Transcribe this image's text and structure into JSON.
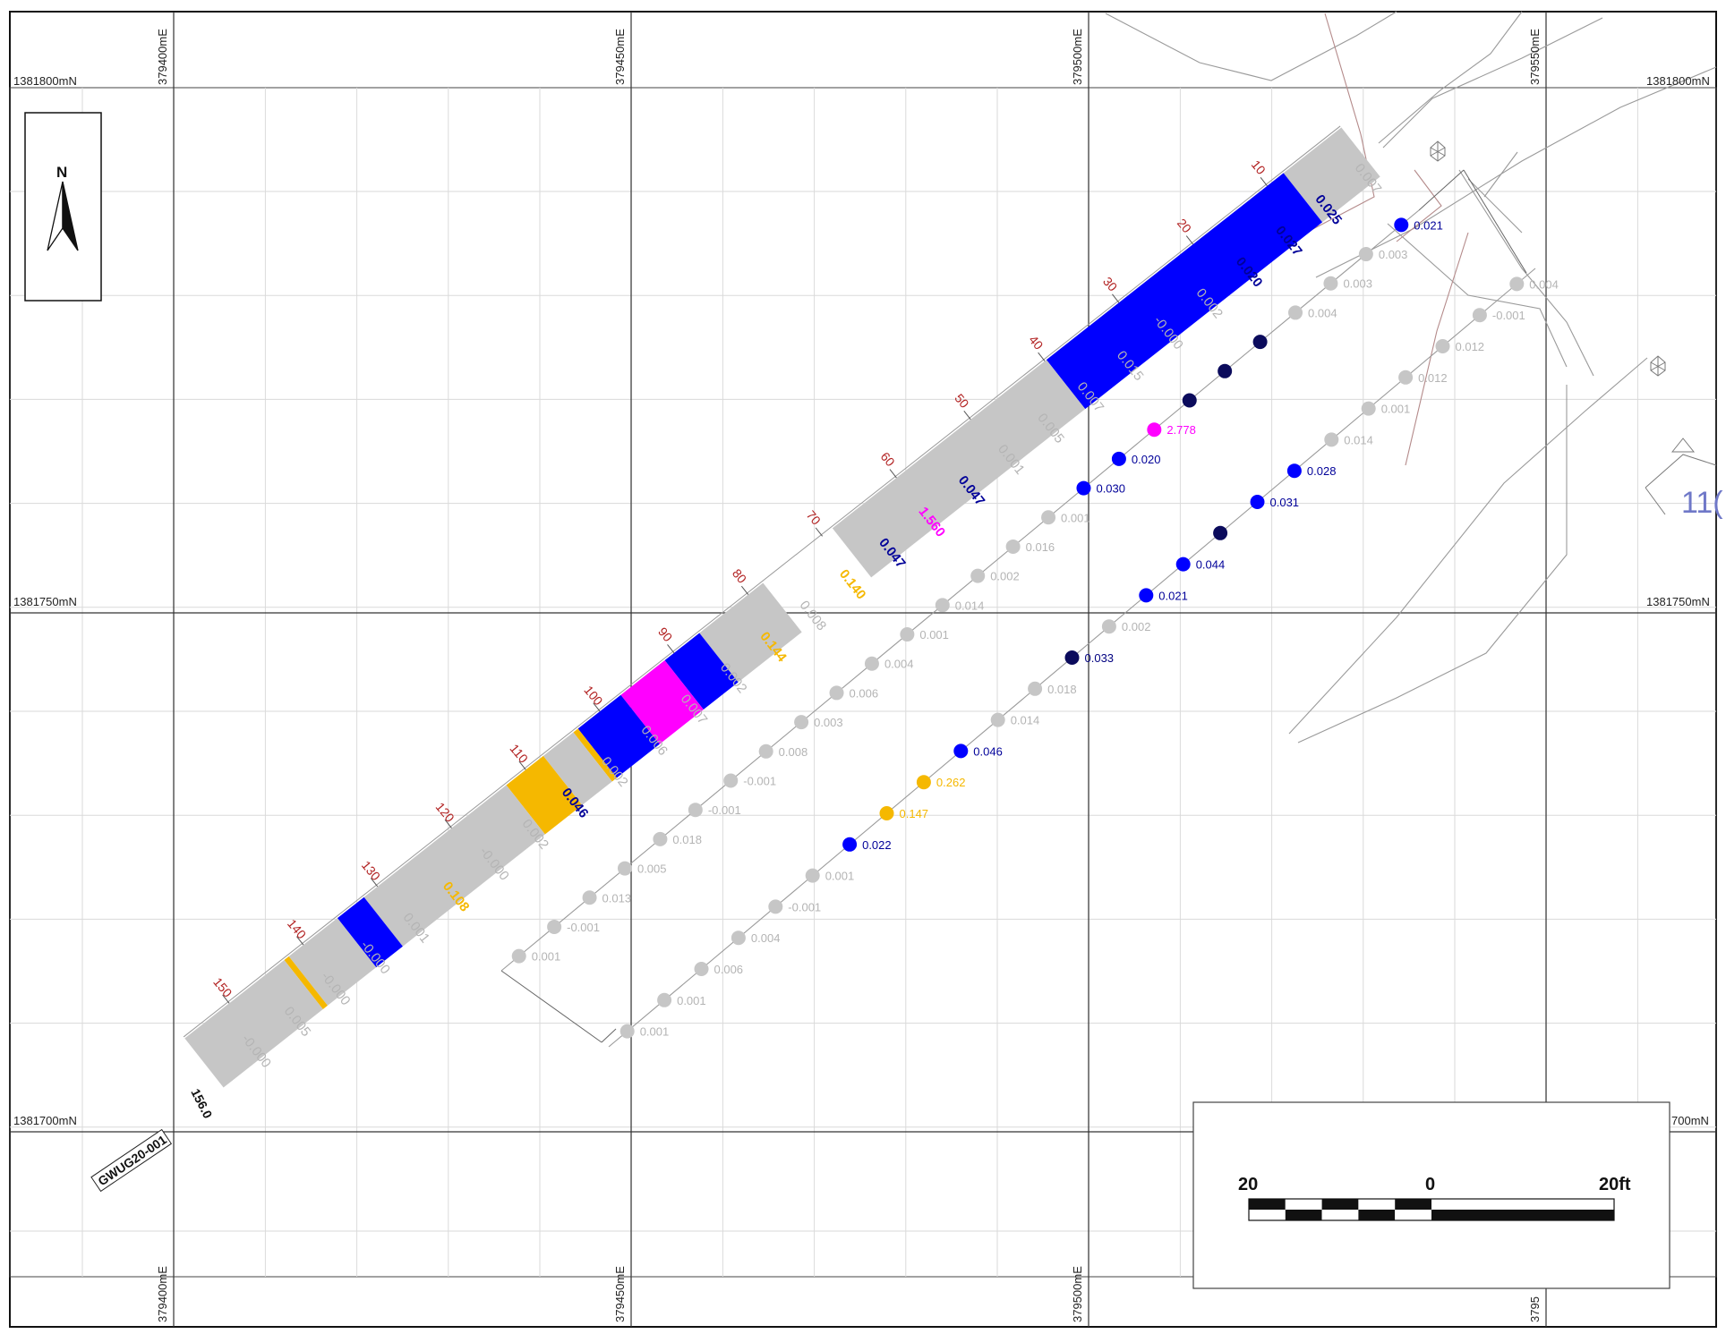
{
  "map": {
    "north_label": "N",
    "easting_labels": [
      "379400mE",
      "379450mE",
      "379500mE",
      "379550mE"
    ],
    "easting_labels_bottom": [
      "379400mE",
      "379450mE",
      "379500mE",
      "3795"
    ],
    "northing_labels": [
      "1381800mN",
      "1381750mN",
      "1381700mN"
    ],
    "northing_right_cropped": "700mN",
    "hole_id": "GWUG20-001",
    "hole_end_depth": "156.0",
    "scale_bar": {
      "left": "20",
      "mid": "0",
      "right": "20ft"
    },
    "partial_label": "11(",
    "colors": {
      "grey": "#c6c6c6",
      "low_grey_text": "#b4b4b4",
      "blue": "#0000ff",
      "dark_navy": "#0b0b5c",
      "magenta": "#ff00ff",
      "orange": "#f5b800",
      "depth_red": "#b22222",
      "contour": "#b08a8a"
    }
  },
  "depth_ticks": [
    "10",
    "20",
    "30",
    "40",
    "50",
    "60",
    "70",
    "80",
    "90",
    "100",
    "110",
    "120",
    "130",
    "140",
    "150"
  ],
  "hole_assays": [
    {
      "v": "0.007",
      "c": "grey"
    },
    {
      "v": "0.025",
      "c": "blue"
    },
    {
      "v": "0.027",
      "c": "blue"
    },
    {
      "v": "0.020",
      "c": "blue"
    },
    {
      "v": "0.002",
      "c": "grey"
    },
    {
      "v": "-0.000",
      "c": "grey"
    },
    {
      "v": "0.015",
      "c": "grey"
    },
    {
      "v": "0.007",
      "c": "grey"
    },
    {
      "v": "0.005",
      "c": "grey"
    },
    {
      "v": "0.001",
      "c": "grey"
    },
    {
      "v": "0.047",
      "c": "blue"
    },
    {
      "v": "1.560",
      "c": "magenta"
    },
    {
      "v": "0.047",
      "c": "blue"
    },
    {
      "v": "0.140",
      "c": "orange"
    },
    {
      "v": "0.008",
      "c": "grey"
    },
    {
      "v": "0.144",
      "c": "orange"
    },
    {
      "v": "0.002",
      "c": "grey"
    },
    {
      "v": "0.007",
      "c": "grey"
    },
    {
      "v": "0.006",
      "c": "grey"
    },
    {
      "v": "0.002",
      "c": "grey"
    },
    {
      "v": "0.046",
      "c": "blue"
    },
    {
      "v": "0.002",
      "c": "grey"
    },
    {
      "v": "-0.000",
      "c": "grey"
    },
    {
      "v": "0.108",
      "c": "orange"
    },
    {
      "v": "0.001",
      "c": "grey"
    },
    {
      "v": "-0.000",
      "c": "grey"
    },
    {
      "v": "-0.000",
      "c": "grey"
    },
    {
      "v": "0.005",
      "c": "grey"
    },
    {
      "v": "-0.000",
      "c": "grey"
    }
  ],
  "samples_line1": [
    {
      "v": "0.021",
      "c": "blue"
    },
    {
      "v": "0.003",
      "c": "grey"
    },
    {
      "v": "0.003",
      "c": "grey"
    },
    {
      "v": "0.004",
      "c": "grey"
    },
    {
      "v": "",
      "c": "navy"
    },
    {
      "v": "",
      "c": "navy"
    },
    {
      "v": "",
      "c": "navy"
    },
    {
      "v": "2.778",
      "c": "magenta"
    },
    {
      "v": "0.020",
      "c": "blue"
    },
    {
      "v": "0.030",
      "c": "blue"
    },
    {
      "v": "0.001",
      "c": "grey"
    },
    {
      "v": "0.016",
      "c": "grey"
    },
    {
      "v": "0.002",
      "c": "grey"
    },
    {
      "v": "0.014",
      "c": "grey"
    },
    {
      "v": "0.001",
      "c": "grey"
    },
    {
      "v": "0.004",
      "c": "grey"
    },
    {
      "v": "0.006",
      "c": "grey"
    },
    {
      "v": "0.003",
      "c": "grey"
    },
    {
      "v": "0.008",
      "c": "grey"
    },
    {
      "v": "-0.001",
      "c": "grey"
    },
    {
      "v": "-0.001",
      "c": "grey"
    },
    {
      "v": "0.018",
      "c": "grey"
    },
    {
      "v": "0.005",
      "c": "grey"
    },
    {
      "v": "0.013",
      "c": "grey"
    },
    {
      "v": "-0.001",
      "c": "grey"
    },
    {
      "v": "0.001",
      "c": "grey"
    }
  ],
  "samples_line2": [
    {
      "v": "0.004",
      "c": "grey"
    },
    {
      "v": "-0.001",
      "c": "grey"
    },
    {
      "v": "0.012",
      "c": "grey"
    },
    {
      "v": "0.012",
      "c": "grey"
    },
    {
      "v": "0.001",
      "c": "grey"
    },
    {
      "v": "0.014",
      "c": "grey"
    },
    {
      "v": "0.028",
      "c": "blue"
    },
    {
      "v": "0.031",
      "c": "blue"
    },
    {
      "v": "",
      "c": "navy"
    },
    {
      "v": "0.044",
      "c": "blue"
    },
    {
      "v": "0.021",
      "c": "blue"
    },
    {
      "v": "0.002",
      "c": "grey"
    },
    {
      "v": "0.033",
      "c": "navy"
    },
    {
      "v": "0.018",
      "c": "grey"
    },
    {
      "v": "0.014",
      "c": "grey"
    },
    {
      "v": "0.046",
      "c": "blue"
    },
    {
      "v": "0.262",
      "c": "orange"
    },
    {
      "v": "0.147",
      "c": "orange"
    },
    {
      "v": "0.022",
      "c": "blue"
    },
    {
      "v": "0.001",
      "c": "grey"
    },
    {
      "v": "-0.001",
      "c": "grey"
    },
    {
      "v": "0.004",
      "c": "grey"
    },
    {
      "v": "0.006",
      "c": "grey"
    },
    {
      "v": "0.001",
      "c": "grey"
    },
    {
      "v": "0.001",
      "c": "grey"
    }
  ]
}
